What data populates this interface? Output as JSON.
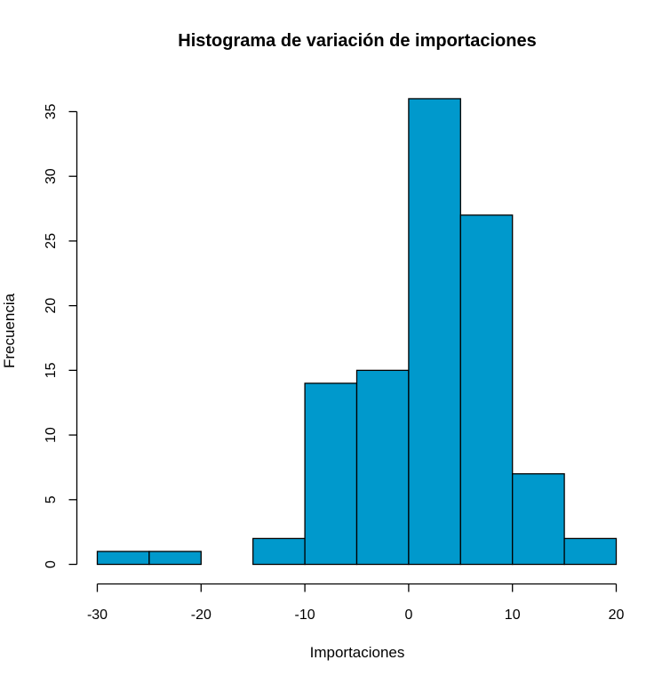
{
  "chart_data": {
    "type": "bar",
    "subtype": "histogram",
    "title": "Histograma de variación de importaciones",
    "xlabel": "Importaciones",
    "ylabel": "Frecuencia",
    "bins": [
      {
        "from": -30,
        "to": -25,
        "count": 1
      },
      {
        "from": -25,
        "to": -20,
        "count": 1
      },
      {
        "from": -20,
        "to": -15,
        "count": 0
      },
      {
        "from": -15,
        "to": -10,
        "count": 2
      },
      {
        "from": -10,
        "to": -5,
        "count": 14
      },
      {
        "from": -5,
        "to": 0,
        "count": 15
      },
      {
        "from": 0,
        "to": 5,
        "count": 36
      },
      {
        "from": 5,
        "to": 10,
        "count": 27
      },
      {
        "from": 10,
        "to": 15,
        "count": 7
      },
      {
        "from": 15,
        "to": 20,
        "count": 2
      }
    ],
    "xlim": [
      -30,
      20
    ],
    "ylim": [
      0,
      36
    ],
    "x_ticks": [
      -30,
      -20,
      -10,
      0,
      10,
      20
    ],
    "x_tick_labels": [
      "-30",
      "-20",
      "-10",
      "0",
      "10",
      "20"
    ],
    "y_ticks": [
      0,
      5,
      10,
      15,
      20,
      25,
      30,
      35
    ],
    "y_tick_labels": [
      "0",
      "5",
      "10",
      "15",
      "20",
      "25",
      "30",
      "35"
    ],
    "bar_color": "#0099cc",
    "edge_color": "#000000",
    "grid": false,
    "legend": "none"
  }
}
